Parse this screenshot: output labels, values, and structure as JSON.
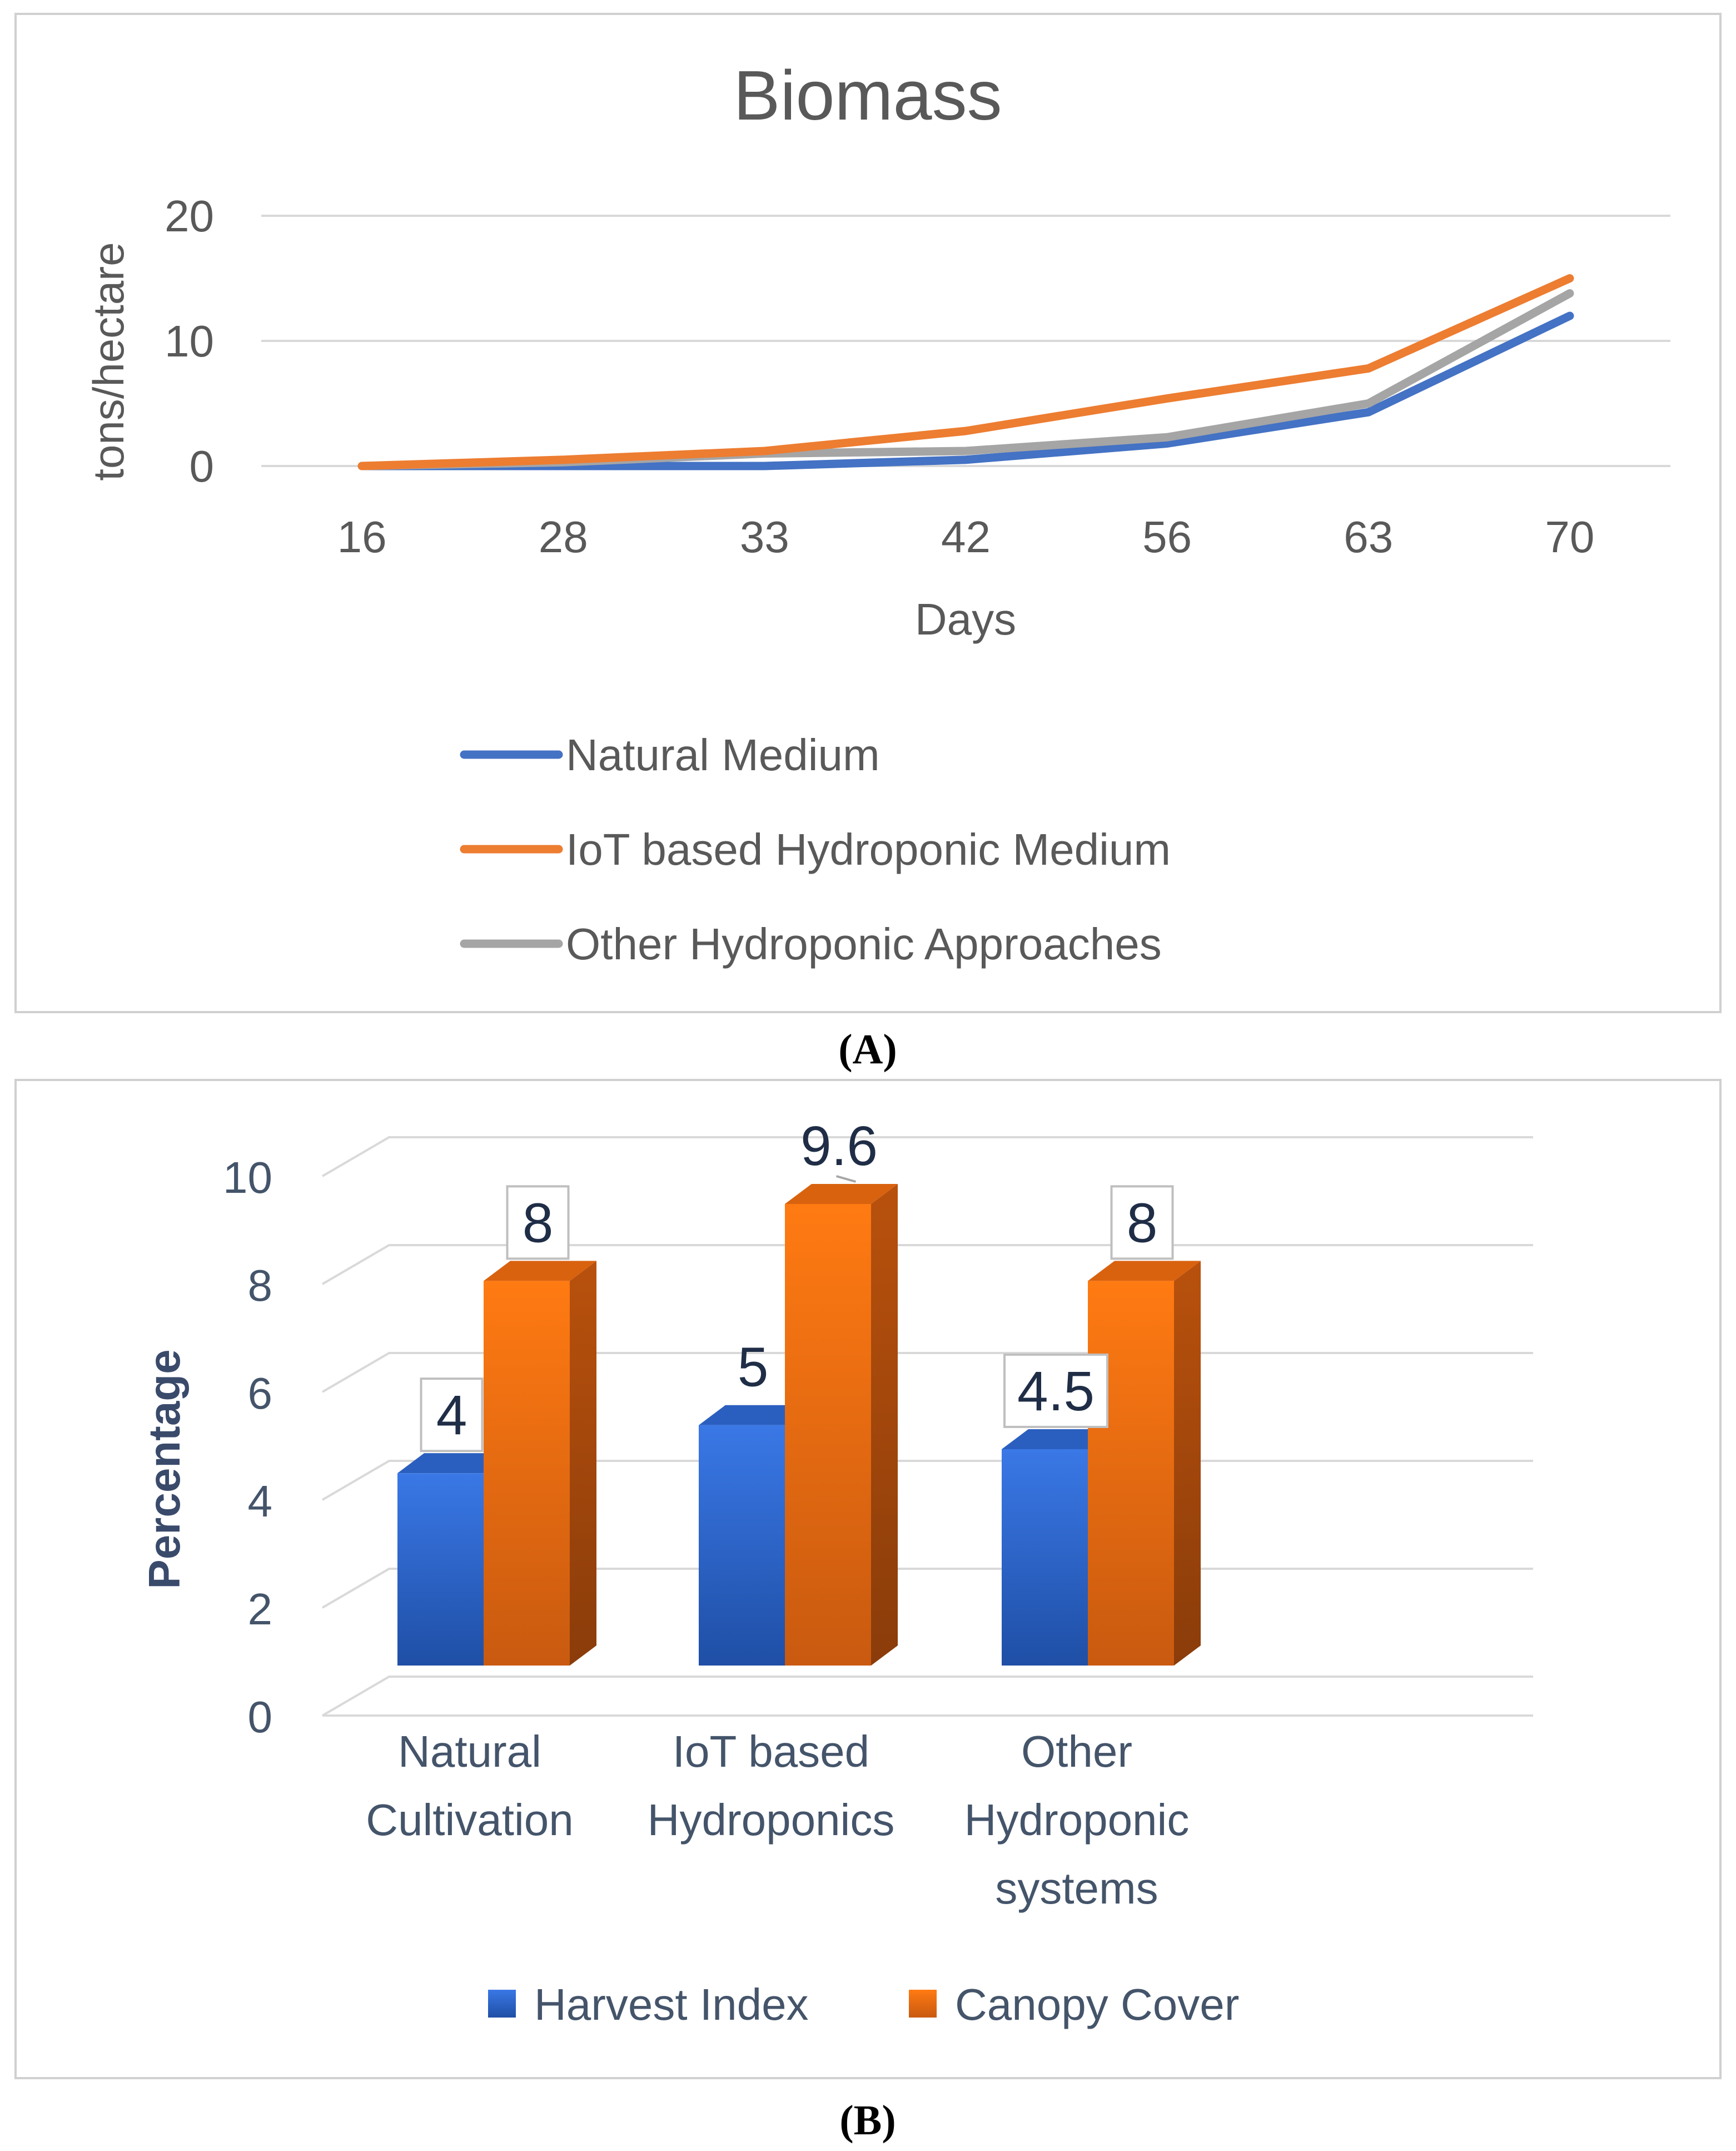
{
  "chart_data": [
    {
      "panel_label": "(A)",
      "type": "line",
      "title": "Biomass",
      "xlabel": "Days",
      "ylabel": "tons/hectare",
      "x": [
        "16",
        "28",
        "33",
        "42",
        "56",
        "63",
        "70"
      ],
      "ylim": [
        0,
        20
      ],
      "yticks": [
        0,
        10,
        20
      ],
      "grid": true,
      "legend_position": "bottom",
      "series": [
        {
          "name": "Natural Medium",
          "color": "#4472c4",
          "values": [
            0,
            0,
            0,
            0.5,
            1.8,
            4.3,
            12
          ]
        },
        {
          "name": "IoT based Hydroponic   Medium",
          "color": "#ed7d31",
          "values": [
            0,
            0.5,
            1.2,
            2.8,
            5.4,
            7.8,
            15
          ]
        },
        {
          "name": "Other Hydroponic Approaches",
          "color": "#a5a5a5",
          "values": [
            0,
            0.3,
            1.0,
            1.2,
            2.3,
            5.0,
            13.8
          ]
        }
      ]
    },
    {
      "panel_label": "(B)",
      "type": "bar",
      "title": "",
      "xlabel": "",
      "ylabel": "Percentage",
      "categories": [
        [
          "Natural",
          "Cultivation"
        ],
        [
          "IoT based",
          "Hydroponics"
        ],
        [
          "Other",
          "Hydroponic",
          "systems"
        ]
      ],
      "ylim": [
        0,
        10
      ],
      "yticks": [
        0,
        2,
        4,
        6,
        8,
        10
      ],
      "grid": true,
      "legend_position": "bottom",
      "series": [
        {
          "name": "Harvest Index",
          "color": "#2f6bd6",
          "values": [
            4,
            5,
            4.5
          ],
          "labels": [
            "4",
            "5",
            "4.5"
          ]
        },
        {
          "name": "Canopy Cover",
          "color": "#f47516",
          "values": [
            8,
            9.6,
            8
          ],
          "labels": [
            "8",
            "9.6",
            "8"
          ]
        }
      ]
    }
  ]
}
